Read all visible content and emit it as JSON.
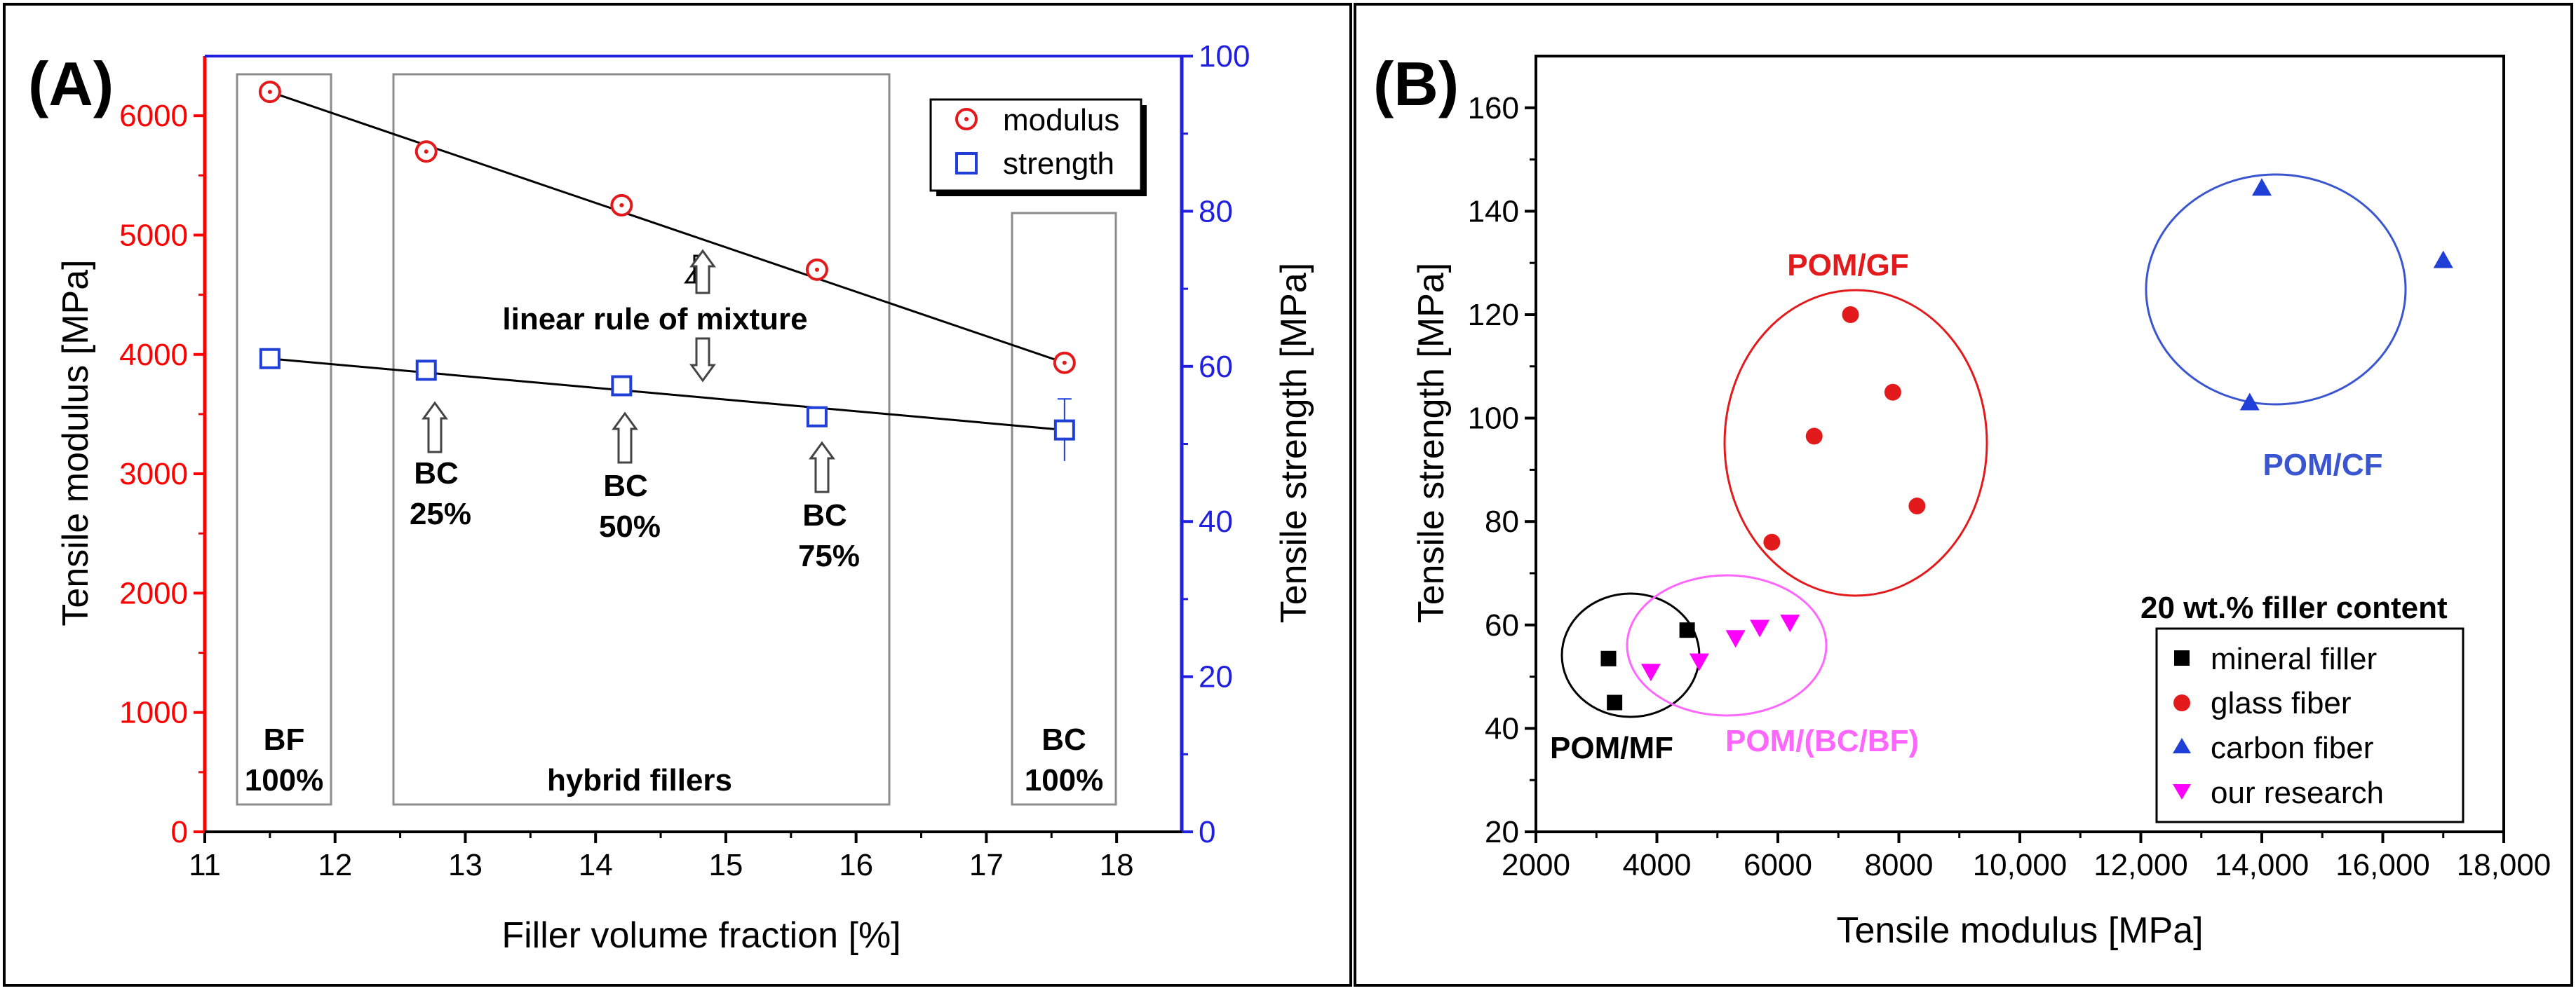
{
  "chart_data": [
    {
      "panel_label": "(A)",
      "type": "scatter",
      "x": [
        11.5,
        12.7,
        14.2,
        15.7,
        17.6
      ],
      "xlabel": "Filler volume fraction [%]",
      "xlim": [
        11,
        18.5
      ],
      "xticks": [
        "11",
        "12",
        "13",
        "14",
        "15",
        "16",
        "17",
        "18"
      ],
      "ylabel_left": "Tensile modulus [MPa]",
      "ylim_left": [
        0,
        6500
      ],
      "yticks_left": [
        "0",
        "1000",
        "2000",
        "3000",
        "4000",
        "5000",
        "6000"
      ],
      "ylabel_right": "Tensile strength [MPa]",
      "ylim_right": [
        0,
        100
      ],
      "yticks_right": [
        "0",
        "20",
        "40",
        "60",
        "80",
        "100"
      ],
      "series": [
        {
          "name": "modulus",
          "axis": "left",
          "marker": "circle-dot",
          "color": "#e31a1c",
          "values": [
            6200,
            5700,
            5250,
            4710,
            3930
          ]
        },
        {
          "name": "strength",
          "axis": "right",
          "marker": "square",
          "color": "#1f3fd6",
          "values": [
            61,
            59.5,
            57.5,
            53.5,
            51.8
          ],
          "err": [
            0,
            0,
            0,
            0,
            4
          ]
        }
      ],
      "fit_lines": [
        {
          "axis": "left",
          "from": [
            11.5,
            6200
          ],
          "to": [
            17.6,
            3930
          ]
        },
        {
          "axis": "right",
          "from": [
            11.5,
            61
          ],
          "to": [
            17.6,
            51.8
          ]
        }
      ],
      "annotations": {
        "rule": "linear rule of mixture",
        "bf_1": "BF",
        "bf_2": "100%",
        "hybrid": "hybrid fillers",
        "bc_1": "BC",
        "bc_2": "100%",
        "bc25_1": "BC",
        "bc25_2": "25%",
        "bc50_1": "BC",
        "bc50_2": "50%",
        "bc75_1": "BC",
        "bc75_2": "75%"
      }
    },
    {
      "panel_label": "(B)",
      "type": "scatter",
      "xlabel": "Tensile modulus [MPa]",
      "xlim": [
        2000,
        18000
      ],
      "xticks": [
        "2000",
        "4000",
        "6000",
        "8000",
        "10,000",
        "12,000",
        "14,000",
        "16,000",
        "18,000"
      ],
      "ylabel": "Tensile strength [MPa]",
      "ylim": [
        20,
        170
      ],
      "yticks": [
        "20",
        "40",
        "60",
        "80",
        "100",
        "120",
        "140",
        "160"
      ],
      "legend_title": "20 wt.% filler content",
      "series": [
        {
          "name": "mineral filler",
          "marker": "square",
          "color": "#000000",
          "points": [
            [
              3200,
              53.5
            ],
            [
              3300,
              45
            ],
            [
              4500,
              59
            ]
          ]
        },
        {
          "name": "glass fiber",
          "marker": "circle",
          "color": "#e31a1c",
          "points": [
            [
              5900,
              76
            ],
            [
              6600,
              96.5
            ],
            [
              7200,
              120
            ],
            [
              7900,
              105
            ],
            [
              8300,
              83
            ]
          ]
        },
        {
          "name": "carbon fiber",
          "marker": "triangle-up",
          "color": "#1f3fd6",
          "points": [
            [
              13800,
              103
            ],
            [
              14000,
              144.5
            ],
            [
              17000,
              130.5
            ]
          ]
        },
        {
          "name": "our research",
          "marker": "triangle-down",
          "color": "#ff00ff",
          "points": [
            [
              3900,
              51
            ],
            [
              4700,
              53
            ],
            [
              5300,
              57.5
            ],
            [
              5700,
              59.5
            ],
            [
              6200,
              60.5
            ]
          ]
        }
      ],
      "groups": [
        {
          "label": "POM/MF",
          "color": "#000000"
        },
        {
          "label": "POM/(BC/BF)",
          "color": "#ff66ff"
        },
        {
          "label": "POM/GF",
          "color": "#e31a1c"
        },
        {
          "label": "POM/CF",
          "color": "#3a55d0"
        }
      ]
    }
  ]
}
